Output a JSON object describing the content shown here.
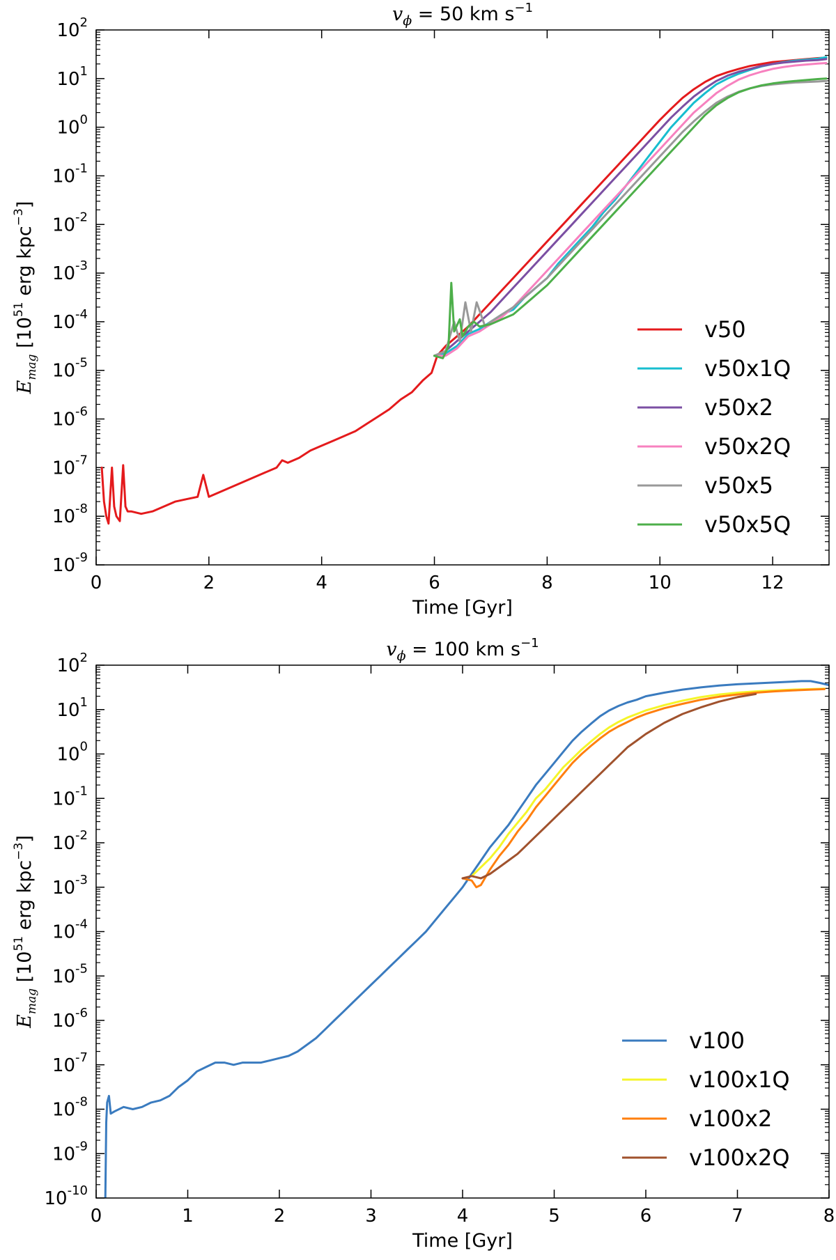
{
  "chart_data": [
    {
      "type": "line",
      "title": {
        "var": "v",
        "sub": "ϕ",
        "text": " = 50 km s",
        "sup": "−1"
      },
      "xlabel": "Time [Gyr]",
      "ylabel": {
        "var": "E",
        "sub": "mag",
        "text": " [10",
        "sup": "51",
        "text2": " erg kpc",
        "sup2": "−3",
        "text3": "]"
      },
      "xlim": [
        0,
        13
      ],
      "ylim_log10": [
        -9,
        2
      ],
      "yscale": "log",
      "xticks": [
        "0",
        "2",
        "4",
        "6",
        "8",
        "10",
        "12"
      ],
      "yticks": [
        {
          "base": "10",
          "exp": "-9"
        },
        {
          "base": "10",
          "exp": "-8"
        },
        {
          "base": "10",
          "exp": "-7"
        },
        {
          "base": "10",
          "exp": "-6"
        },
        {
          "base": "10",
          "exp": "-5"
        },
        {
          "base": "10",
          "exp": "-4"
        },
        {
          "base": "10",
          "exp": "-3"
        },
        {
          "base": "10",
          "exp": "-2"
        },
        {
          "base": "10",
          "exp": "-1"
        },
        {
          "base": "10",
          "exp": "0"
        },
        {
          "base": "10",
          "exp": "1"
        },
        {
          "base": "10",
          "exp": "2"
        }
      ],
      "legend_position": "lower-right",
      "series": [
        {
          "name": "v50",
          "color": "#e41a1c",
          "x": [
            0.1,
            0.14,
            0.18,
            0.22,
            0.28,
            0.32,
            0.36,
            0.42,
            0.48,
            0.52,
            0.56,
            0.62,
            0.8,
            1.0,
            1.2,
            1.4,
            1.6,
            1.8,
            1.9,
            2.0,
            2.2,
            2.4,
            2.6,
            2.8,
            3.0,
            3.2,
            3.3,
            3.4,
            3.6,
            3.8,
            4.0,
            4.2,
            4.4,
            4.6,
            4.8,
            5.0,
            5.2,
            5.4,
            5.6,
            5.8,
            5.95,
            6.05,
            6.2,
            6.4,
            6.6,
            6.8,
            7.0,
            7.2,
            7.4,
            7.6,
            7.8,
            8.0,
            8.2,
            8.4,
            8.6,
            8.8,
            9.0,
            9.2,
            9.4,
            9.6,
            9.8,
            10.0,
            10.2,
            10.4,
            10.6,
            10.8,
            11.0,
            11.2,
            11.4,
            11.6,
            11.8,
            12.0,
            12.2,
            12.4,
            12.6,
            12.8,
            12.95
          ],
          "y_log10": [
            -7.0,
            -7.7,
            -8.0,
            -8.15,
            -7.0,
            -7.8,
            -8.0,
            -8.1,
            -6.95,
            -7.8,
            -7.9,
            -7.9,
            -7.95,
            -7.9,
            -7.8,
            -7.7,
            -7.65,
            -7.6,
            -7.15,
            -7.6,
            -7.5,
            -7.4,
            -7.3,
            -7.2,
            -7.1,
            -7.0,
            -6.85,
            -6.9,
            -6.8,
            -6.65,
            -6.55,
            -6.45,
            -6.35,
            -6.25,
            -6.1,
            -5.95,
            -5.8,
            -5.6,
            -5.45,
            -5.2,
            -5.05,
            -4.7,
            -4.5,
            -4.3,
            -4.1,
            -3.85,
            -3.6,
            -3.35,
            -3.1,
            -2.85,
            -2.6,
            -2.35,
            -2.1,
            -1.85,
            -1.6,
            -1.35,
            -1.1,
            -0.85,
            -0.6,
            -0.35,
            -0.1,
            0.15,
            0.38,
            0.6,
            0.78,
            0.93,
            1.05,
            1.13,
            1.2,
            1.26,
            1.3,
            1.34,
            1.36,
            1.38,
            1.4,
            1.42,
            1.43
          ]
        },
        {
          "name": "v50x1Q",
          "color": "#17becf",
          "x": [
            6.0,
            6.2,
            6.4,
            6.6,
            6.8,
            7.0,
            7.2,
            7.4,
            7.6,
            7.8,
            8.0,
            8.2,
            8.4,
            8.6,
            8.8,
            9.0,
            9.2,
            9.4,
            9.6,
            9.8,
            10.0,
            10.2,
            10.4,
            10.6,
            10.8,
            11.0,
            11.2,
            11.4,
            11.6,
            11.8,
            12.0,
            12.2,
            12.4,
            12.6,
            12.8,
            12.95
          ],
          "y_log10": [
            -4.7,
            -4.65,
            -4.5,
            -4.25,
            -4.15,
            -4.0,
            -3.85,
            -3.75,
            -3.5,
            -3.3,
            -3.1,
            -2.8,
            -2.55,
            -2.3,
            -2.05,
            -1.75,
            -1.5,
            -1.2,
            -0.9,
            -0.6,
            -0.3,
            0.0,
            0.25,
            0.5,
            0.7,
            0.88,
            1.0,
            1.1,
            1.18,
            1.25,
            1.3,
            1.34,
            1.37,
            1.39,
            1.41,
            1.44
          ]
        },
        {
          "name": "v50x2",
          "color": "#7b4fa3",
          "x": [
            6.0,
            6.2,
            6.4,
            6.6,
            6.8,
            7.0,
            7.2,
            7.4,
            7.6,
            7.8,
            8.0,
            8.2,
            8.4,
            8.6,
            8.8,
            9.0,
            9.2,
            9.4,
            9.6,
            9.8,
            10.0,
            10.2,
            10.4,
            10.6,
            10.8,
            11.0,
            11.2,
            11.4,
            11.6,
            11.8,
            12.0,
            12.2,
            12.4,
            12.6,
            12.8,
            12.95
          ],
          "y_log10": [
            -4.7,
            -4.6,
            -4.4,
            -4.2,
            -4.0,
            -3.8,
            -3.55,
            -3.3,
            -3.05,
            -2.8,
            -2.55,
            -2.3,
            -2.05,
            -1.8,
            -1.55,
            -1.3,
            -1.05,
            -0.8,
            -0.55,
            -0.3,
            -0.05,
            0.2,
            0.42,
            0.63,
            0.8,
            0.95,
            1.06,
            1.14,
            1.2,
            1.26,
            1.3,
            1.33,
            1.35,
            1.37,
            1.38,
            1.4
          ]
        },
        {
          "name": "v50x2Q",
          "color": "#f781bf",
          "x": [
            6.0,
            6.2,
            6.4,
            6.6,
            6.8,
            7.0,
            7.2,
            7.4,
            7.6,
            7.8,
            8.0,
            8.2,
            8.4,
            8.6,
            8.8,
            9.0,
            9.2,
            9.4,
            9.6,
            9.8,
            10.0,
            10.2,
            10.4,
            10.6,
            10.8,
            11.0,
            11.2,
            11.4,
            11.6,
            11.8,
            12.0,
            12.2,
            12.4,
            12.6,
            12.8,
            12.95
          ],
          "y_log10": [
            -4.7,
            -4.7,
            -4.55,
            -4.3,
            -4.2,
            -4.05,
            -3.9,
            -3.7,
            -3.45,
            -3.2,
            -2.95,
            -2.7,
            -2.45,
            -2.2,
            -1.95,
            -1.7,
            -1.45,
            -1.2,
            -0.95,
            -0.7,
            -0.45,
            -0.2,
            0.05,
            0.3,
            0.5,
            0.7,
            0.85,
            0.98,
            1.07,
            1.14,
            1.2,
            1.24,
            1.27,
            1.29,
            1.31,
            1.32
          ]
        },
        {
          "name": "v50x5",
          "color": "#999999",
          "x": [
            6.0,
            6.2,
            6.35,
            6.45,
            6.55,
            6.65,
            6.75,
            6.9,
            7.0,
            7.2,
            7.4,
            7.6,
            7.8,
            8.0,
            8.2,
            8.4,
            8.6,
            8.8,
            9.0,
            9.2,
            9.4,
            9.6,
            9.8,
            10.0,
            10.2,
            10.4,
            10.6,
            10.8,
            11.0,
            11.2,
            11.4,
            11.6,
            11.8,
            12.0,
            12.2,
            12.4,
            12.6,
            12.8,
            12.95
          ],
          "y_log10": [
            -4.7,
            -4.6,
            -4.0,
            -4.4,
            -3.6,
            -4.2,
            -3.6,
            -4.1,
            -4.0,
            -3.85,
            -3.7,
            -3.5,
            -3.3,
            -3.1,
            -2.85,
            -2.6,
            -2.35,
            -2.1,
            -1.85,
            -1.6,
            -1.35,
            -1.1,
            -0.85,
            -0.6,
            -0.35,
            -0.1,
            0.12,
            0.32,
            0.5,
            0.63,
            0.73,
            0.8,
            0.85,
            0.88,
            0.9,
            0.92,
            0.93,
            0.94,
            0.95
          ]
        },
        {
          "name": "v50x5Q",
          "color": "#4daf4a",
          "x": [
            6.0,
            6.15,
            6.25,
            6.3,
            6.35,
            6.45,
            6.5,
            6.6,
            6.7,
            6.8,
            7.0,
            7.2,
            7.4,
            7.6,
            7.8,
            8.0,
            8.2,
            8.4,
            8.6,
            8.8,
            9.0,
            9.2,
            9.4,
            9.6,
            9.8,
            10.0,
            10.2,
            10.4,
            10.6,
            10.8,
            11.0,
            11.2,
            11.4,
            11.6,
            11.8,
            12.0,
            12.2,
            12.4,
            12.6,
            12.8,
            12.95
          ],
          "y_log10": [
            -4.7,
            -4.75,
            -4.5,
            -3.2,
            -4.2,
            -3.95,
            -4.3,
            -4.1,
            -4.0,
            -4.1,
            -4.05,
            -3.95,
            -3.85,
            -3.65,
            -3.45,
            -3.25,
            -3.0,
            -2.75,
            -2.5,
            -2.25,
            -2.0,
            -1.75,
            -1.5,
            -1.25,
            -1.0,
            -0.75,
            -0.5,
            -0.25,
            0.0,
            0.25,
            0.45,
            0.6,
            0.72,
            0.8,
            0.86,
            0.9,
            0.93,
            0.95,
            0.97,
            0.99,
            1.0
          ]
        }
      ]
    },
    {
      "type": "line",
      "title": {
        "var": "v",
        "sub": "ϕ",
        "text": " = 100 km s",
        "sup": "−1"
      },
      "xlabel": "Time [Gyr]",
      "ylabel": {
        "var": "E",
        "sub": "mag",
        "text": " [10",
        "sup": "51",
        "text2": " erg kpc",
        "sup2": "−3",
        "text3": "]"
      },
      "xlim": [
        0,
        8
      ],
      "ylim_log10": [
        -10,
        2
      ],
      "yscale": "log",
      "xticks": [
        "0",
        "1",
        "2",
        "3",
        "4",
        "5",
        "6",
        "7",
        "8"
      ],
      "yticks": [
        {
          "base": "10",
          "exp": "-10"
        },
        {
          "base": "10",
          "exp": "-9"
        },
        {
          "base": "10",
          "exp": "-8"
        },
        {
          "base": "10",
          "exp": "-7"
        },
        {
          "base": "10",
          "exp": "-6"
        },
        {
          "base": "10",
          "exp": "-5"
        },
        {
          "base": "10",
          "exp": "-4"
        },
        {
          "base": "10",
          "exp": "-3"
        },
        {
          "base": "10",
          "exp": "-2"
        },
        {
          "base": "10",
          "exp": "-1"
        },
        {
          "base": "10",
          "exp": "0"
        },
        {
          "base": "10",
          "exp": "1"
        },
        {
          "base": "10",
          "exp": "2"
        }
      ],
      "legend_position": "lower-right",
      "series": [
        {
          "name": "v100",
          "color": "#3a7bbf",
          "x": [
            0.1,
            0.11,
            0.12,
            0.14,
            0.16,
            0.2,
            0.3,
            0.4,
            0.5,
            0.6,
            0.7,
            0.8,
            0.9,
            1.0,
            1.1,
            1.2,
            1.3,
            1.4,
            1.5,
            1.6,
            1.7,
            1.8,
            1.9,
            2.0,
            2.1,
            2.2,
            2.3,
            2.4,
            2.5,
            2.6,
            2.7,
            2.8,
            2.9,
            3.0,
            3.1,
            3.2,
            3.3,
            3.4,
            3.5,
            3.6,
            3.7,
            3.8,
            3.9,
            4.0,
            4.1,
            4.2,
            4.3,
            4.4,
            4.5,
            4.6,
            4.7,
            4.8,
            4.9,
            5.0,
            5.1,
            5.2,
            5.3,
            5.4,
            5.5,
            5.6,
            5.7,
            5.8,
            5.9,
            6.0,
            6.2,
            6.4,
            6.6,
            6.8,
            7.0,
            7.2,
            7.4,
            7.6,
            7.7,
            7.8,
            7.9,
            8.0
          ],
          "y_log10": [
            -10.0,
            -8.3,
            -7.85,
            -7.7,
            -8.1,
            -8.05,
            -7.95,
            -8.0,
            -7.95,
            -7.85,
            -7.8,
            -7.7,
            -7.5,
            -7.35,
            -7.15,
            -7.05,
            -6.95,
            -6.95,
            -7.0,
            -6.95,
            -6.95,
            -6.95,
            -6.9,
            -6.85,
            -6.8,
            -6.7,
            -6.55,
            -6.4,
            -6.2,
            -6.0,
            -5.8,
            -5.6,
            -5.4,
            -5.2,
            -5.0,
            -4.8,
            -4.6,
            -4.4,
            -4.2,
            -4.0,
            -3.75,
            -3.5,
            -3.25,
            -3.0,
            -2.7,
            -2.4,
            -2.1,
            -1.85,
            -1.6,
            -1.3,
            -1.0,
            -0.7,
            -0.45,
            -0.2,
            0.05,
            0.3,
            0.5,
            0.68,
            0.85,
            0.98,
            1.08,
            1.16,
            1.22,
            1.3,
            1.38,
            1.45,
            1.5,
            1.54,
            1.57,
            1.59,
            1.61,
            1.63,
            1.64,
            1.64,
            1.6,
            1.55
          ]
        },
        {
          "name": "v100x1Q",
          "color": "#f5f529",
          "x": [
            4.1,
            4.2,
            4.3,
            4.4,
            4.5,
            4.6,
            4.7,
            4.8,
            4.9,
            5.0,
            5.1,
            5.2,
            5.3,
            5.4,
            5.5,
            5.6,
            5.7,
            5.8,
            5.9,
            6.0,
            6.2,
            6.4,
            6.6,
            6.8,
            7.0,
            7.2,
            7.4,
            7.6,
            7.8,
            7.95
          ],
          "y_log10": [
            -2.75,
            -2.55,
            -2.35,
            -2.1,
            -1.8,
            -1.55,
            -1.3,
            -1.0,
            -0.8,
            -0.55,
            -0.3,
            -0.1,
            0.1,
            0.28,
            0.45,
            0.6,
            0.72,
            0.82,
            0.9,
            0.98,
            1.1,
            1.2,
            1.28,
            1.34,
            1.38,
            1.41,
            1.43,
            1.45,
            1.46,
            1.47
          ]
        },
        {
          "name": "v100x2",
          "color": "#ff7f0e",
          "x": [
            4.0,
            4.1,
            4.15,
            4.2,
            4.3,
            4.4,
            4.5,
            4.6,
            4.7,
            4.8,
            4.9,
            5.0,
            5.1,
            5.2,
            5.3,
            5.4,
            5.5,
            5.6,
            5.7,
            5.8,
            5.9,
            6.0,
            6.2,
            6.4,
            6.6,
            6.8,
            7.0,
            7.2,
            7.4,
            7.6,
            7.8,
            7.95
          ],
          "y_log10": [
            -2.8,
            -2.85,
            -3.0,
            -2.95,
            -2.6,
            -2.3,
            -2.05,
            -1.75,
            -1.5,
            -1.2,
            -0.95,
            -0.7,
            -0.45,
            -0.2,
            0.0,
            0.18,
            0.35,
            0.5,
            0.62,
            0.72,
            0.82,
            0.9,
            1.03,
            1.13,
            1.22,
            1.29,
            1.34,
            1.38,
            1.41,
            1.43,
            1.45,
            1.46
          ]
        },
        {
          "name": "v100x2Q",
          "color": "#a0522d",
          "x": [
            4.0,
            4.1,
            4.2,
            4.3,
            4.4,
            4.5,
            4.6,
            4.7,
            4.8,
            4.9,
            5.0,
            5.1,
            5.2,
            5.3,
            5.4,
            5.5,
            5.6,
            5.7,
            5.8,
            5.9,
            6.0,
            6.2,
            6.4,
            6.6,
            6.8,
            7.0,
            7.2
          ],
          "y_log10": [
            -2.8,
            -2.75,
            -2.8,
            -2.7,
            -2.55,
            -2.4,
            -2.25,
            -2.05,
            -1.85,
            -1.65,
            -1.45,
            -1.25,
            -1.05,
            -0.85,
            -0.65,
            -0.45,
            -0.25,
            -0.05,
            0.15,
            0.3,
            0.45,
            0.7,
            0.9,
            1.05,
            1.18,
            1.28,
            1.35
          ]
        }
      ]
    }
  ]
}
